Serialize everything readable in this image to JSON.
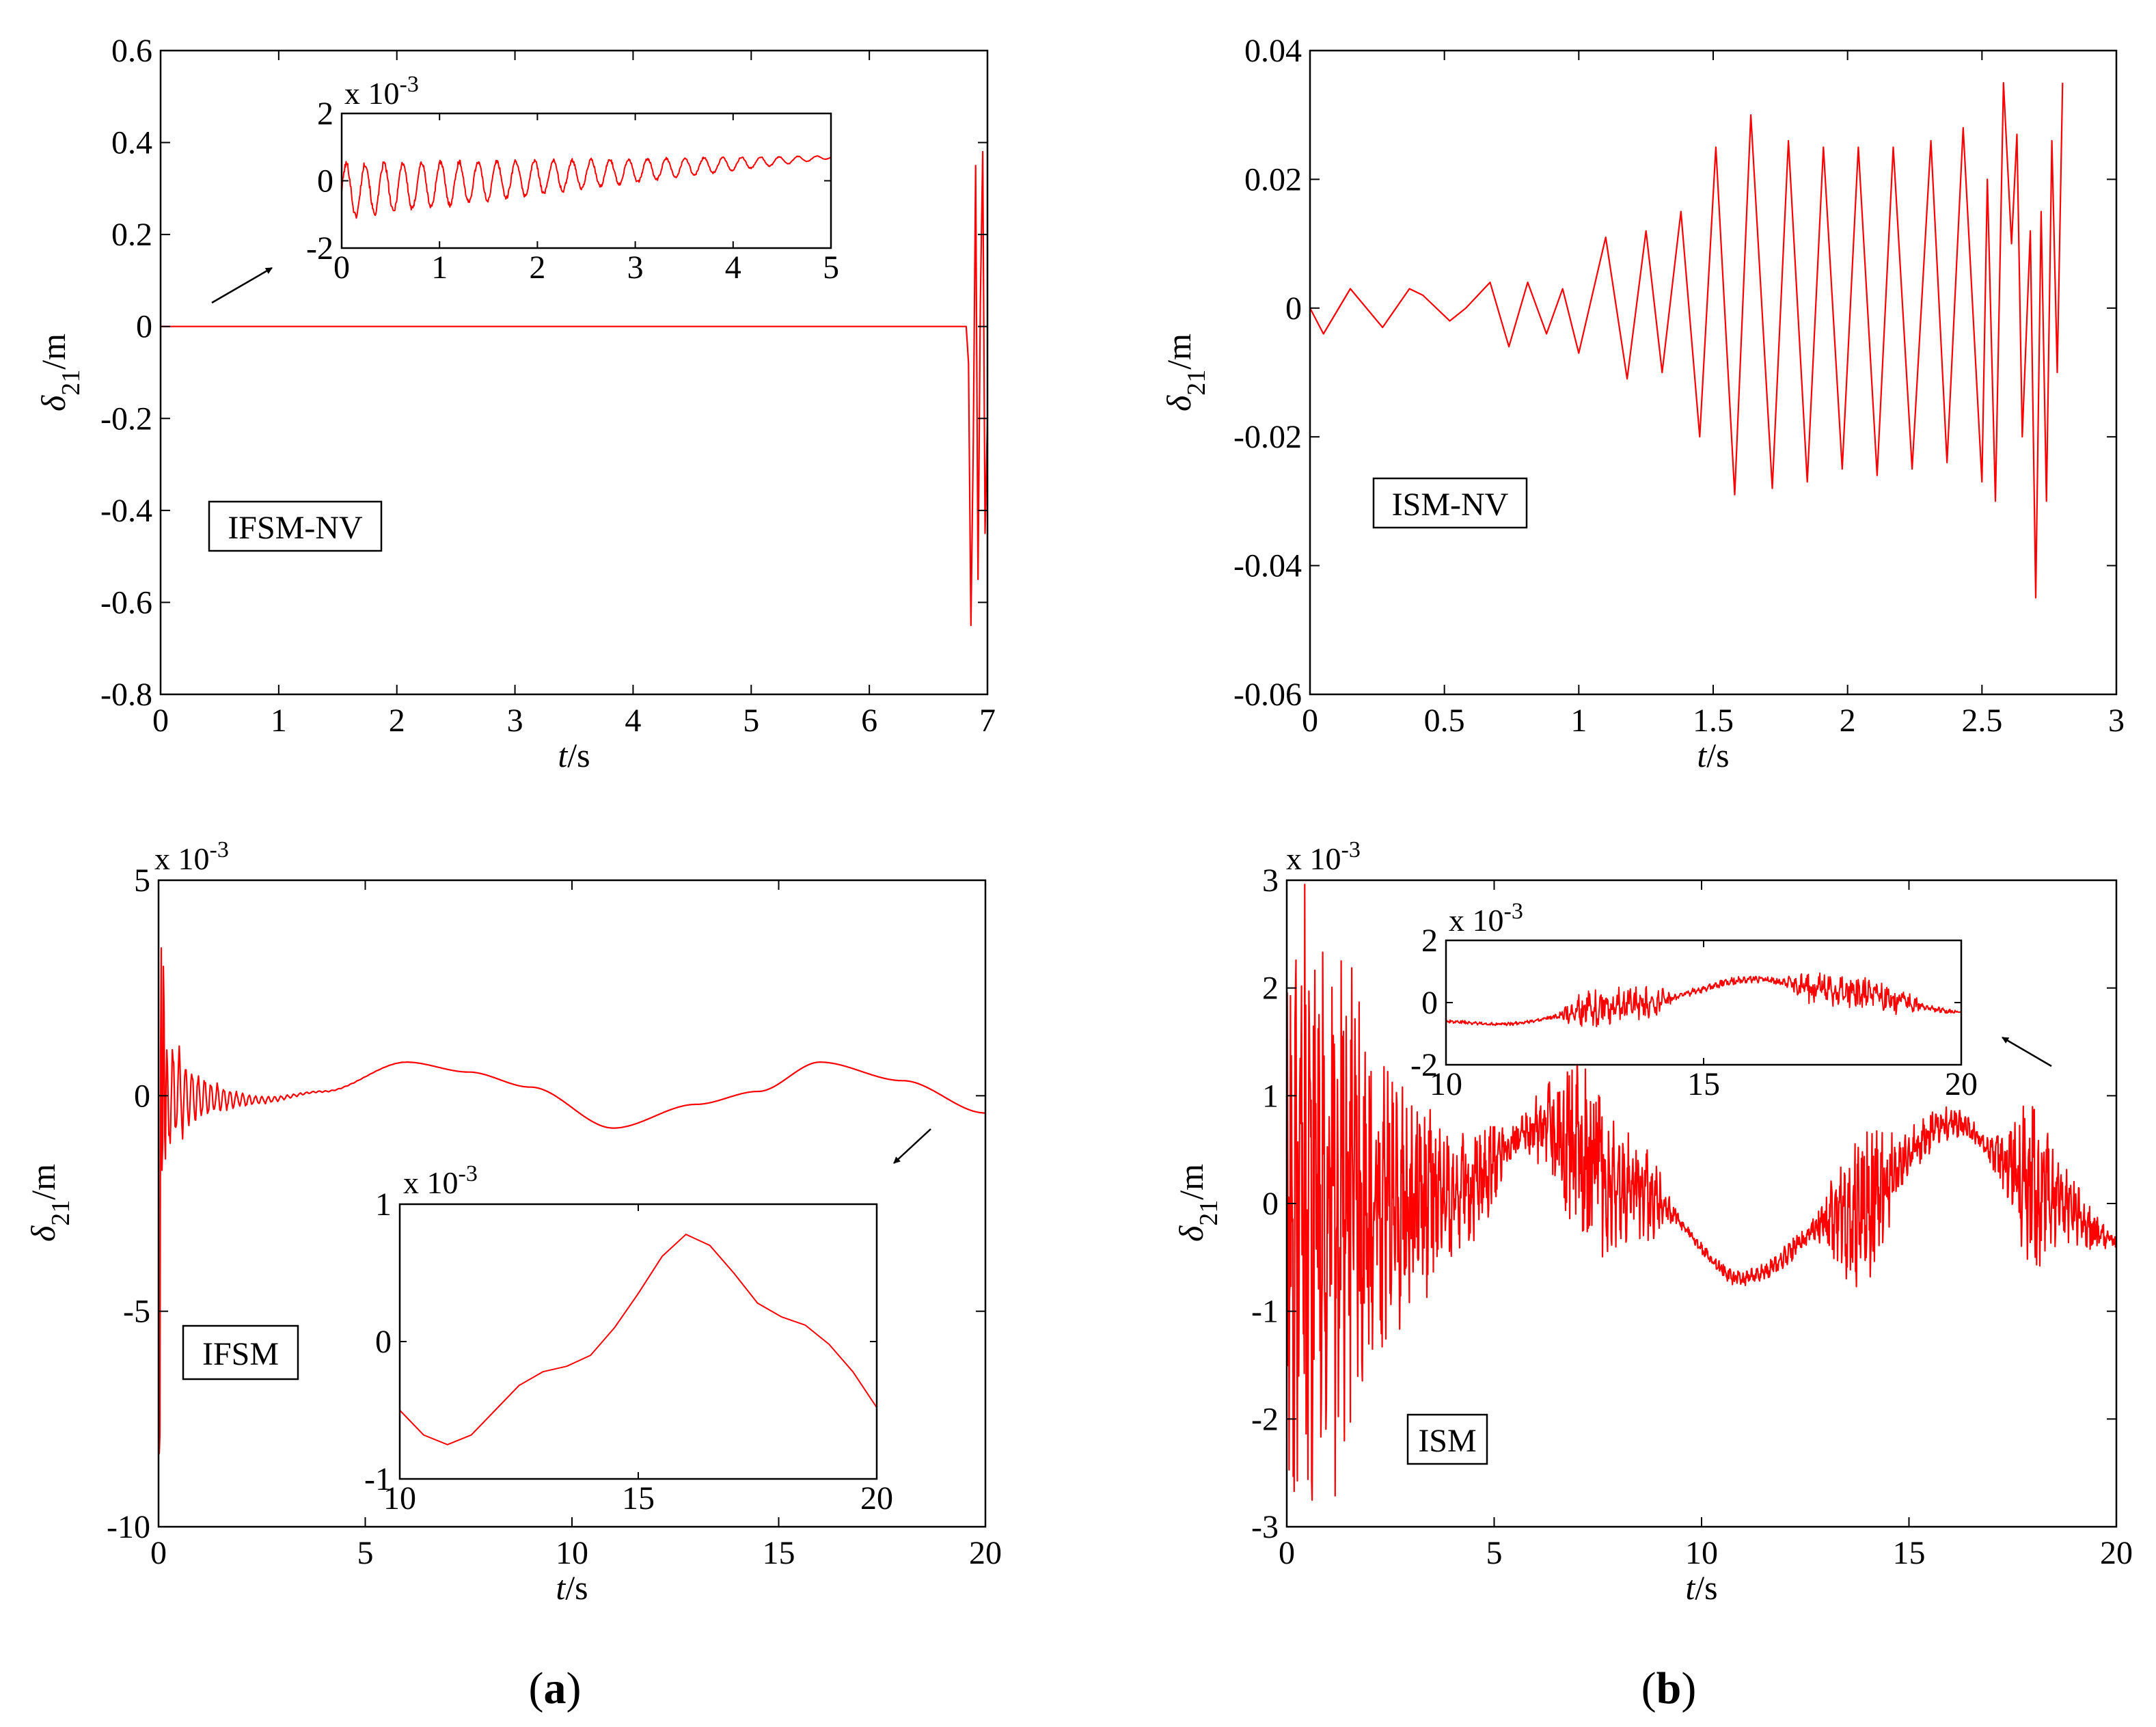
{
  "figure": {
    "panel_labels": {
      "a": "a",
      "b": "b"
    },
    "colors": {
      "trace": "#ff0000",
      "axis": "#000000",
      "background": "#ffffff"
    }
  },
  "chart_data": [
    {
      "id": "a-top",
      "type": "line",
      "xlabel_var": "t",
      "xlabel_unit": "/s",
      "ylabel_var": "δ",
      "ylabel_sub": "21",
      "ylabel_unit": "/m",
      "xlim": [
        0,
        7
      ],
      "ylim": [
        -0.8,
        0.6
      ],
      "xticks": [
        0,
        1,
        2,
        3,
        4,
        5,
        6,
        7
      ],
      "xtick_labels": [
        "0",
        "1",
        "2",
        "3",
        "4",
        "5",
        "6",
        "7"
      ],
      "yticks": [
        -0.8,
        -0.6,
        -0.4,
        -0.2,
        0,
        0.2,
        0.4,
        0.6
      ],
      "ytick_labels": [
        "-0.8",
        "-0.6",
        "-0.4",
        "-0.2",
        "0",
        "0.2",
        "0.4",
        "0.6"
      ],
      "annotation": "IFSM-NV",
      "series": [
        {
          "name": "δ21",
          "x": [
            0,
            6.82,
            6.84,
            6.86,
            6.88,
            6.9,
            6.92,
            6.94,
            6.96,
            6.98,
            7.0
          ],
          "y": [
            0,
            0,
            -0.08,
            -0.65,
            -0.25,
            0.35,
            -0.55,
            0.05,
            0.38,
            -0.45,
            -0.2
          ]
        }
      ],
      "inset": {
        "xlim": [
          0,
          5
        ],
        "ylim": [
          -2,
          2
        ],
        "xticks": [
          0,
          1,
          2,
          3,
          4,
          5
        ],
        "xtick_labels": [
          "0",
          "1",
          "2",
          "3",
          "4",
          "5"
        ],
        "yticks": [
          -2,
          0,
          2
        ],
        "ytick_labels": [
          "-2",
          "0",
          "2"
        ],
        "multiplier_base": "x 10",
        "multiplier_exp": "-3",
        "signal": {
          "kind": "osc",
          "t0": 0,
          "t1": 5,
          "n": 900,
          "freq": 5.2,
          "amp_start": 0.8,
          "amp_end": 0.04,
          "offset_start": -0.3,
          "offset_end": 0.7,
          "noise": 0.12
        }
      }
    },
    {
      "id": "b-top",
      "type": "line",
      "xlabel_var": "t",
      "xlabel_unit": "/s",
      "ylabel_var": "δ",
      "ylabel_sub": "21",
      "ylabel_unit": "/m",
      "xlim": [
        0,
        3
      ],
      "ylim": [
        -0.06,
        0.04
      ],
      "xticks": [
        0,
        0.5,
        1,
        1.5,
        2,
        2.5,
        3
      ],
      "xtick_labels": [
        "0",
        "0.5",
        "1",
        "1.5",
        "2",
        "2.5",
        "3"
      ],
      "yticks": [
        -0.06,
        -0.04,
        -0.02,
        0,
        0.02,
        0.04
      ],
      "ytick_labels": [
        "-0.06",
        "-0.04",
        "-0.02",
        "0",
        "0.02",
        "0.04"
      ],
      "annotation": "ISM-NV",
      "series": [
        {
          "name": "δ21",
          "x": [
            0,
            0.05,
            0.15,
            0.27,
            0.37,
            0.42,
            0.52,
            0.58,
            0.67,
            0.74,
            0.81,
            0.88,
            0.94,
            1.0,
            1.1,
            1.18,
            1.25,
            1.31,
            1.38,
            1.45,
            1.51,
            1.58,
            1.64,
            1.72,
            1.78,
            1.85,
            1.91,
            1.98,
            2.04,
            2.11,
            2.17,
            2.24,
            2.31,
            2.37,
            2.43,
            2.5,
            2.52,
            2.55,
            2.58,
            2.61,
            2.63,
            2.65,
            2.68,
            2.7,
            2.72,
            2.74,
            2.76,
            2.78,
            2.8
          ],
          "y": [
            0,
            -0.004,
            0.003,
            -0.003,
            0.003,
            0.002,
            -0.002,
            0.0,
            0.004,
            -0.006,
            0.004,
            -0.004,
            0.003,
            -0.007,
            0.011,
            -0.011,
            0.012,
            -0.01,
            0.015,
            -0.02,
            0.025,
            -0.029,
            0.03,
            -0.028,
            0.026,
            -0.027,
            0.025,
            -0.025,
            0.025,
            -0.026,
            0.025,
            -0.025,
            0.026,
            -0.024,
            0.028,
            -0.027,
            0.02,
            -0.03,
            0.035,
            0.01,
            0.027,
            -0.02,
            0.012,
            -0.045,
            0.015,
            -0.03,
            0.026,
            -0.01,
            0.035
          ]
        }
      ]
    },
    {
      "id": "a-bottom",
      "type": "line",
      "xlabel_var": "t",
      "xlabel_unit": "/s",
      "ylabel_var": "δ",
      "ylabel_sub": "21",
      "ylabel_unit": "/m",
      "xlim": [
        0,
        20
      ],
      "ylim": [
        -10,
        5
      ],
      "xticks": [
        0,
        5,
        10,
        15,
        20
      ],
      "xtick_labels": [
        "0",
        "5",
        "10",
        "15",
        "20"
      ],
      "yticks": [
        -10,
        -5,
        0,
        5
      ],
      "ytick_labels": [
        "-10",
        "-5",
        "0",
        "5"
      ],
      "multiplier_base": "x 10",
      "multiplier_exp": "-3",
      "annotation": "IFSM",
      "series": [
        {
          "name": "δ21",
          "signal": {
            "kind": "burst_then_smooth",
            "t0": 0,
            "t1": 20,
            "n": 1200,
            "spikes_t": [
              0.03,
              0.06,
              0.09,
              0.12,
              0.16,
              0.2
            ],
            "spikes_y": [
              -8.3,
              4.3,
              -2.6,
              3.2,
              -1.7,
              1.5
            ],
            "decay": 1.2,
            "smooth_t": [
              2.5,
              4,
              6,
              7.5,
              9,
              11,
              13,
              14.5,
              16,
              18,
              20
            ],
            "smooth_y": [
              -0.1,
              0.1,
              0.78,
              0.55,
              0.2,
              -0.75,
              -0.2,
              0.1,
              0.78,
              0.35,
              -0.4
            ]
          }
        }
      ],
      "inset": {
        "xlim": [
          10,
          20
        ],
        "ylim": [
          -1,
          1
        ],
        "xticks": [
          10,
          15,
          20
        ],
        "xtick_labels": [
          "10",
          "15",
          "20"
        ],
        "yticks": [
          -1,
          0,
          1
        ],
        "ytick_labels": [
          "-1",
          "0",
          "1"
        ],
        "multiplier_base": "x 10",
        "multiplier_exp": "-3",
        "x": [
          10,
          10.5,
          11,
          11.5,
          12,
          12.5,
          13,
          13.5,
          14,
          14.5,
          15,
          15.5,
          16,
          16.5,
          17,
          17.5,
          18,
          18.5,
          19,
          19.5,
          20
        ],
        "y": [
          -0.5,
          -0.68,
          -0.75,
          -0.68,
          -0.5,
          -0.32,
          -0.22,
          -0.18,
          -0.1,
          0.1,
          0.35,
          0.62,
          0.78,
          0.7,
          0.5,
          0.28,
          0.18,
          0.12,
          -0.02,
          -0.22,
          -0.48
        ]
      }
    },
    {
      "id": "b-bottom",
      "type": "line",
      "xlabel_var": "t",
      "xlabel_unit": "/s",
      "ylabel_var": "δ",
      "ylabel_sub": "21",
      "ylabel_unit": "/m",
      "xlim": [
        0,
        20
      ],
      "ylim": [
        -3,
        3
      ],
      "xticks": [
        0,
        5,
        10,
        15,
        20
      ],
      "xtick_labels": [
        "0",
        "5",
        "10",
        "15",
        "20"
      ],
      "yticks": [
        -3,
        -2,
        -1,
        0,
        1,
        2,
        3
      ],
      "ytick_labels": [
        "-3",
        "-2",
        "-1",
        "0",
        "1",
        "2",
        "3"
      ],
      "multiplier_base": "x 10",
      "multiplier_exp": "-3",
      "annotation": "ISM",
      "series": [
        {
          "name": "δ21",
          "signal": {
            "kind": "noisy_wave",
            "t0": 0,
            "t1": 20,
            "n": 1800,
            "base_t": [
              0,
              2,
              4,
              6,
              8.5,
              11,
              13.5,
              16,
              18,
              20
            ],
            "base_y": [
              0,
              0,
              0.05,
              0.7,
              0.1,
              -0.7,
              -0.1,
              0.75,
              0.2,
              -0.35
            ],
            "noise_t": [
              0,
              1.2,
              2.0,
              4.5,
              5.5,
              7.2,
              8.6,
              9.5,
              12.5,
              14.0,
              15.0,
              16.8,
              18.0,
              19.2,
              20
            ],
            "noise_a": [
              2.5,
              2.8,
              1.4,
              0.5,
              0.15,
              0.8,
              0.4,
              0.05,
              0.1,
              0.7,
              0.2,
              0.1,
              0.7,
              0.25,
              0.05
            ]
          }
        }
      ],
      "inset": {
        "xlim": [
          10,
          20
        ],
        "ylim": [
          -2,
          2
        ],
        "xticks": [
          10,
          15,
          20
        ],
        "xtick_labels": [
          "10",
          "15",
          "20"
        ],
        "yticks": [
          -2,
          0,
          2
        ],
        "ytick_labels": [
          "-2",
          "0",
          "2"
        ],
        "multiplier_base": "x 10",
        "multiplier_exp": "-3",
        "signal": {
          "kind": "noisy_wave",
          "t0": 10,
          "t1": 20,
          "n": 900,
          "base_t": [
            10,
            11,
            13.5,
            16,
            18,
            20
          ],
          "base_y": [
            -0.6,
            -0.7,
            -0.1,
            0.75,
            0.3,
            -0.3
          ],
          "noise_t": [
            10,
            12,
            12.8,
            14,
            14.5,
            15.5,
            16.5,
            17,
            18.5,
            19.5,
            20
          ],
          "noise_a": [
            0.05,
            0.05,
            0.6,
            0.5,
            0.1,
            0.12,
            0.1,
            0.5,
            0.5,
            0.1,
            0.05
          ]
        }
      }
    }
  ]
}
